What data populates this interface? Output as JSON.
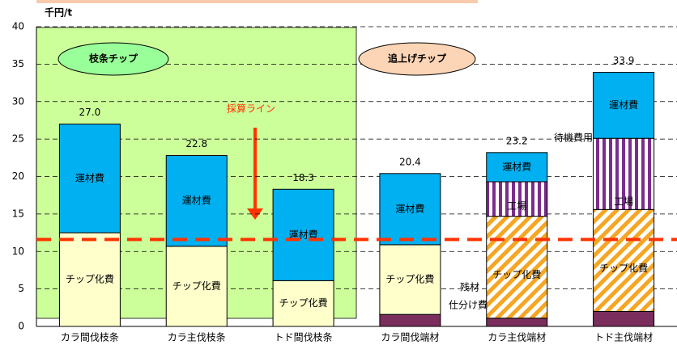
{
  "chart_data": {
    "type": "stacked-bar",
    "y_unit": "千円/t",
    "categories": [
      "カラ間伐枝条",
      "カラ主伐枝条",
      "トド間伐枝条",
      "カラ間伐端材",
      "カラ主伐端材",
      "トド主伐端材"
    ],
    "series": [
      {
        "color": "#7b2d5e",
        "values": [
          0,
          0,
          0,
          1.6,
          1.1,
          2.0
        ]
      },
      {
        "name": "チップ化費",
        "color": "#ffffcc",
        "values": [
          12.5,
          10.7,
          6.1,
          9.3,
          13.6,
          13.6
        ]
      },
      {
        "color": "#7b2d8e",
        "values": [
          0,
          0,
          0,
          0,
          4.6,
          9.5
        ]
      },
      {
        "name": "運材費",
        "color": "#00b0f0",
        "values": [
          14.5,
          12.1,
          12.2,
          9.5,
          3.9,
          8.8
        ]
      }
    ],
    "hatched": [
      false,
      false,
      false,
      false,
      true,
      true
    ],
    "hatch_color": "#f5a623",
    "totals": [
      27,
      22.8,
      18.3,
      20.4,
      23.2,
      33.9
    ],
    "total_labels": [
      "27.0",
      "22.8",
      "18.3",
      "20.4",
      "23.2",
      "33.9"
    ],
    "break_even": 11.6,
    "break_even_color": "#ff3300",
    "annotations": [
      "枝条チップ",
      "追上げチップ",
      "採算ライン",
      "工場",
      "工場",
      "残材",
      "仕分け費",
      "待機費用"
    ],
    "ylim": [
      0,
      40
    ],
    "yticks": [
      0,
      5,
      10,
      15,
      20,
      25,
      30,
      35,
      40
    ],
    "grid": true
  }
}
